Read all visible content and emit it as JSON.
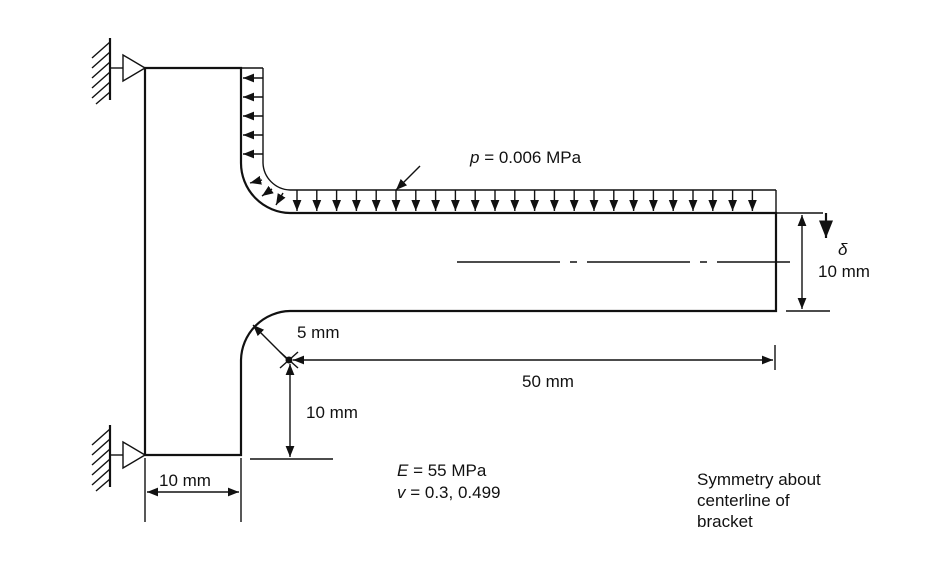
{
  "load": {
    "symbol": "p",
    "value": " = 0.006 MPa"
  },
  "deflection": {
    "symbol": "δ"
  },
  "dims": {
    "thickness": "10 mm",
    "radius": "5 mm",
    "length": "50 mm",
    "height": "10 mm",
    "width": "10 mm"
  },
  "material": {
    "E_symbol": "E",
    "E_value": " = 55 MPa",
    "nu_symbol": "v",
    "nu_value": " = 0.3, 0.499"
  },
  "note": {
    "line1": "Symmetry about",
    "line2": "centerline of",
    "line3": "bracket"
  },
  "icons": [
    "pin-support-icon",
    "ground-hatch-icon",
    "load-arrow-icon",
    "center-mark-icon"
  ]
}
